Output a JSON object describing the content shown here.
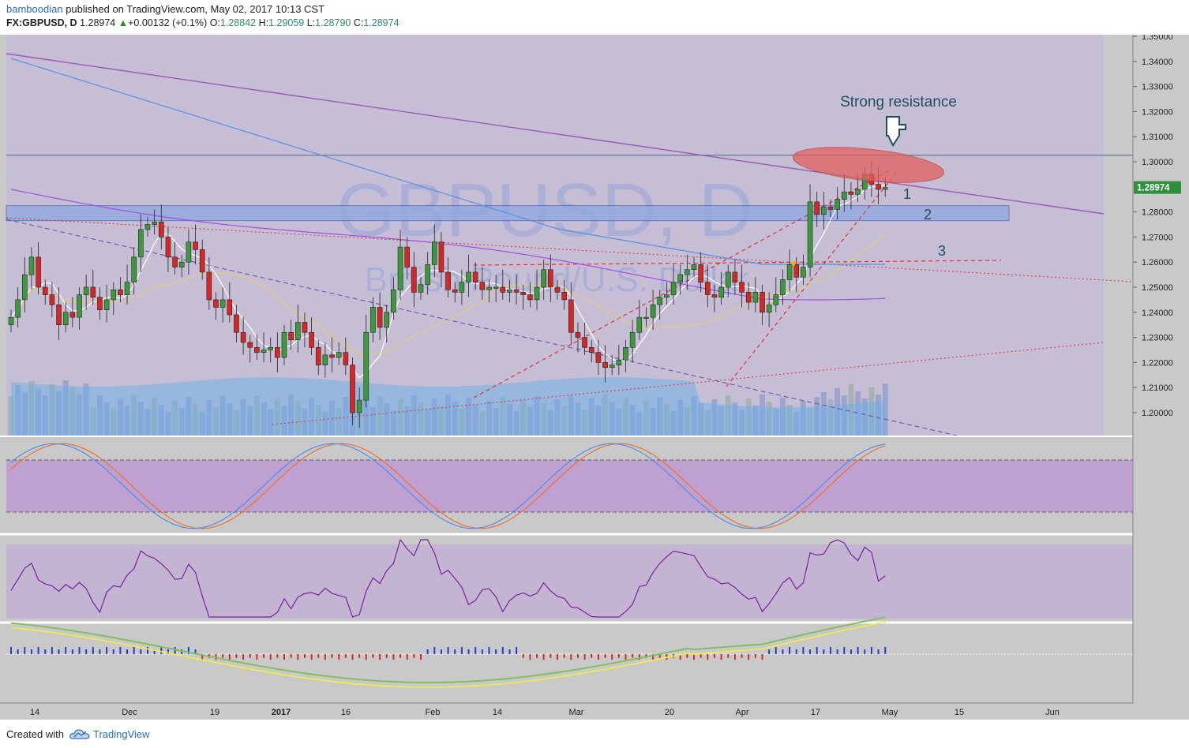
{
  "header": {
    "publisher": "bamboodian",
    "published_text": "published on TradingView.com, May 02, 2017 10:13 CST",
    "symbol": "FX:GBPUSD, D",
    "last": "1.28974",
    "change": "+0.00132 (+0.1%)",
    "o_label": "O:",
    "o_val": "1.28842",
    "h_label": "H:",
    "h_val": "1.29059",
    "l_label": "L:",
    "l_val": "1.28790",
    "c_label": "C:",
    "c_val": "1.28974"
  },
  "footer": {
    "created_with": "Created with",
    "brand": "TradingView"
  },
  "watermark": {
    "symbol": "GBPUSD, D",
    "name": "British Pound/U.S. Dollar"
  },
  "annotations": {
    "resistance": "Strong resistance",
    "n1": "1",
    "n2": "2",
    "n3": "3"
  },
  "price_badge": "1.28974",
  "colors": {
    "up": "#3c9a3c",
    "down": "#d62727",
    "band": "#8fa8e0",
    "ellipse": "#e06060",
    "trend_purple": "#9b59b6",
    "ma_white": "#ffffff",
    "ma_yellow": "#e8d060",
    "ma_blue": "#5b8fe0",
    "ma_purple": "#a050e0",
    "stoch_k": "#4f8fe8",
    "stoch_d": "#f07030",
    "rsi": "#7a1fa0",
    "macd_green": "#7fbf5f",
    "macd_yellow": "#f0f040",
    "macd_red": "#f03030"
  },
  "chart_data": {
    "type": "candlestick",
    "symbol": "GBPUSD",
    "timeframe": "D",
    "price_axis": {
      "ticks": [
        "1.35000",
        "1.34000",
        "1.33000",
        "1.32000",
        "1.31000",
        "1.30000",
        "1.29000",
        "1.28000",
        "1.27000",
        "1.26000",
        "1.25000",
        "1.24000",
        "1.23000",
        "1.22000",
        "1.21000",
        "1.20000"
      ],
      "ylim": [
        1.192,
        1.352
      ],
      "last_price": 1.28974
    },
    "time_axis": {
      "labels": [
        "14",
        "Dec",
        "19",
        "2017",
        "16",
        "Feb",
        "14",
        "Mar",
        "20",
        "Apr",
        "17",
        "May",
        "15",
        "Jun"
      ]
    },
    "close_series": [
      1.238,
      1.245,
      1.255,
      1.262,
      1.25,
      1.247,
      1.243,
      1.235,
      1.24,
      1.238,
      1.247,
      1.25,
      1.246,
      1.241,
      1.245,
      1.249,
      1.247,
      1.252,
      1.262,
      1.273,
      1.275,
      1.276,
      1.27,
      1.262,
      1.258,
      1.26,
      1.268,
      1.265,
      1.256,
      1.245,
      1.242,
      1.245,
      1.239,
      1.232,
      1.228,
      1.226,
      1.224,
      1.225,
      1.226,
      1.222,
      1.232,
      1.229,
      1.236,
      1.232,
      1.226,
      1.219,
      1.223,
      1.222,
      1.224,
      1.219,
      1.2,
      1.205,
      1.232,
      1.242,
      1.234,
      1.24,
      1.249,
      1.266,
      1.258,
      1.248,
      1.251,
      1.259,
      1.268,
      1.256,
      1.249,
      1.248,
      1.252,
      1.256,
      1.252,
      1.249,
      1.25,
      1.25,
      1.248,
      1.249,
      1.248,
      1.247,
      1.245,
      1.25,
      1.257,
      1.25,
      1.248,
      1.245,
      1.232,
      1.23,
      1.226,
      1.224,
      1.22,
      1.218,
      1.219,
      1.221,
      1.226,
      1.232,
      1.238,
      1.238,
      1.243,
      1.246,
      1.247,
      1.252,
      1.255,
      1.257,
      1.259,
      1.252,
      1.247,
      1.246,
      1.25,
      1.256,
      1.252,
      1.248,
      1.244,
      1.248,
      1.24,
      1.243,
      1.247,
      1.253,
      1.259,
      1.254,
      1.258,
      1.284,
      1.279,
      1.282,
      1.281,
      1.285,
      1.288,
      1.287,
      1.289,
      1.295,
      1.291,
      1.289,
      1.2897
    ],
    "resistance_level": 1.3026,
    "support_zone": [
      1.2765,
      1.2825
    ],
    "stochastic": {
      "ticks": [
        "100.0000",
        "75.0000",
        "50.0000",
        "25.0000",
        "0.0000"
      ],
      "bands": [
        20,
        80
      ]
    },
    "rsi": {
      "ticks": [
        "60.0000",
        "40.0000"
      ],
      "bands": [
        30,
        70
      ]
    },
    "macd": {
      "ticks": [
        "0.0000",
        "-0.0200"
      ]
    }
  }
}
